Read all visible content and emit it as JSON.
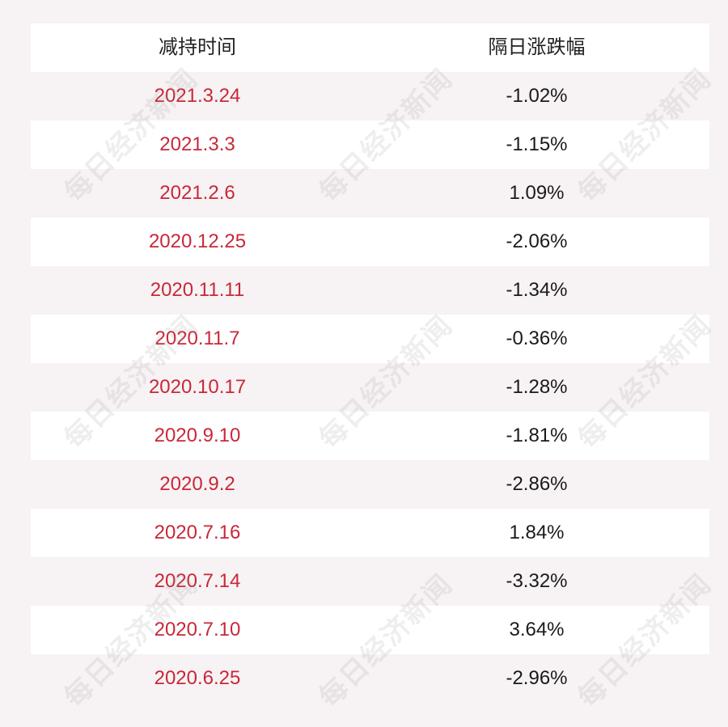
{
  "table": {
    "headers": {
      "date": "减持时间",
      "change": "隔日涨跌幅"
    },
    "rows": [
      {
        "date": "2021.3.24",
        "change": "-1.02%"
      },
      {
        "date": "2021.3.3",
        "change": "-1.15%"
      },
      {
        "date": "2021.2.6",
        "change": "1.09%"
      },
      {
        "date": "2020.12.25",
        "change": "-2.06%"
      },
      {
        "date": "2020.11.11",
        "change": "-1.34%"
      },
      {
        "date": "2020.11.7",
        "change": "-0.36%"
      },
      {
        "date": "2020.10.17",
        "change": "-1.28%"
      },
      {
        "date": "2020.9.10",
        "change": "-1.81%"
      },
      {
        "date": "2020.9.2",
        "change": "-2.86%"
      },
      {
        "date": "2020.7.16",
        "change": "1.84%"
      },
      {
        "date": "2020.7.14",
        "change": "-3.32%"
      },
      {
        "date": "2020.7.10",
        "change": "3.64%"
      },
      {
        "date": "2020.6.25",
        "change": "-2.96%"
      }
    ]
  },
  "watermark": {
    "text": "每日经济新闻"
  },
  "colors": {
    "date_text": "#c8283a",
    "value_text": "#1a1a1a",
    "background": "#f7f2f3"
  }
}
